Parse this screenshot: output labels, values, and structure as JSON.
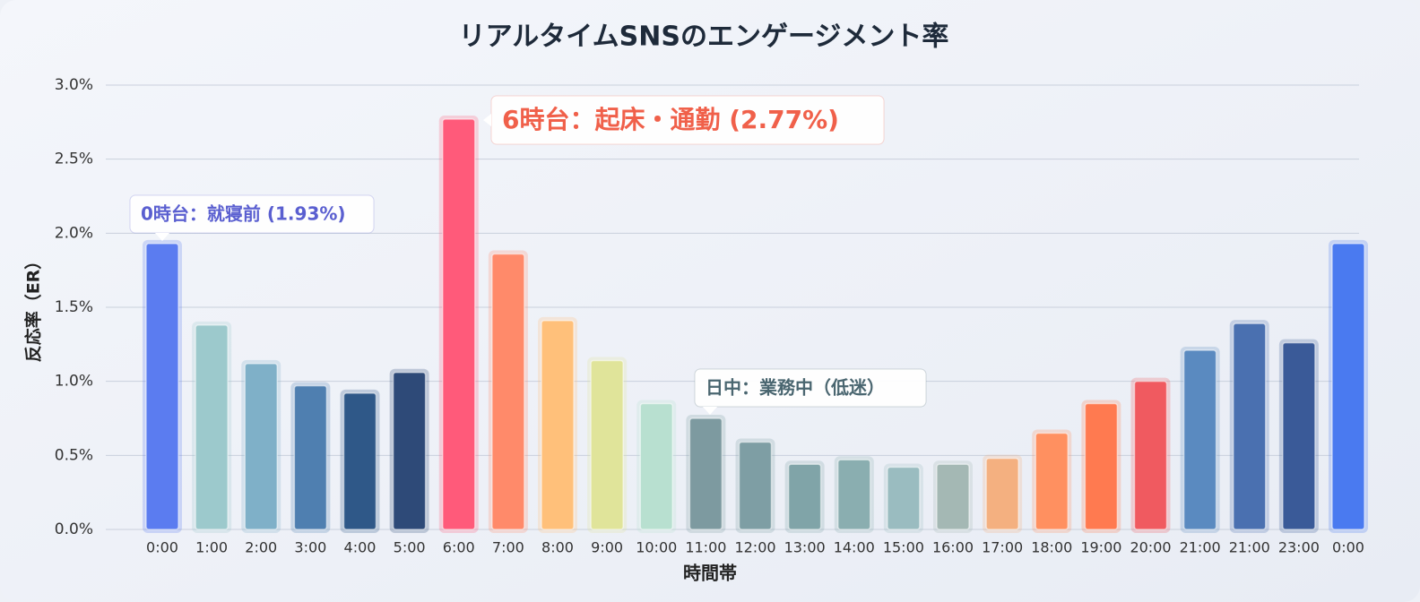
{
  "chart_data": {
    "type": "bar",
    "title": "リアルタイムSNSのエンゲージメント率",
    "x_label": "時間帯",
    "y_label": "反応率（ER）",
    "categories": [
      "0:00",
      "1:00",
      "2:00",
      "3:00",
      "4:00",
      "5:00",
      "6:00",
      "7:00",
      "8:00",
      "9:00",
      "10:00",
      "11:00",
      "12:00",
      "13:00",
      "14:00",
      "15:00",
      "16:00",
      "17:00",
      "18:00",
      "19:00",
      "20:00",
      "21:00",
      "21:00",
      "23:00",
      "0:00"
    ],
    "values": [
      1.93,
      1.38,
      1.12,
      0.97,
      0.92,
      1.06,
      2.77,
      1.86,
      1.41,
      1.14,
      0.85,
      0.75,
      0.59,
      0.44,
      0.47,
      0.42,
      0.44,
      0.48,
      0.65,
      0.85,
      1.0,
      1.21,
      1.39,
      1.26,
      1.93
    ],
    "colors": [
      "#5b7cf0",
      "#9cc9cc",
      "#7fb0c8",
      "#4f7fb0",
      "#2f5888",
      "#2e4a78",
      "#ff5a7a",
      "#ff8a6a",
      "#ffc07a",
      "#e0e49a",
      "#b8e0d0",
      "#7d9aa0",
      "#7e9ea4",
      "#80a4a8",
      "#8aaeb0",
      "#9abcc0",
      "#a4b8b4",
      "#f4b080",
      "#ff9060",
      "#ff7a50",
      "#f05a60",
      "#5a8ac0",
      "#4a70b0",
      "#3a5a98",
      "#4a7af0"
    ],
    "ylim": [
      0,
      3.0
    ],
    "yticks": [
      {
        "value": 0,
        "label": "0.0%"
      },
      {
        "value": 0.5,
        "label": "0.5%"
      },
      {
        "value": 1.0,
        "label": "1.0%"
      },
      {
        "value": 1.5,
        "label": "1.5%"
      },
      {
        "value": 2.0,
        "label": "2.0%"
      },
      {
        "value": 2.5,
        "label": "2.5%"
      },
      {
        "value": 3.0,
        "label": "3.0%"
      }
    ],
    "grid": true,
    "annotations": [
      "0時台：就寝前 (1.93%)",
      "6時台：起床・通勤 (2.77%)",
      "日中：業務中（低迷）"
    ]
  }
}
